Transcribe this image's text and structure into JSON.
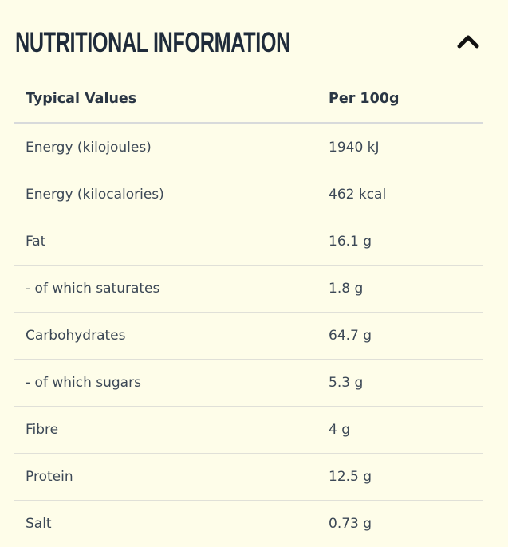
{
  "section": {
    "title": "NUTRITIONAL INFORMATION",
    "toggle_icon": "chevron-up-icon"
  },
  "table": {
    "headers": [
      "Typical Values",
      "Per 100g"
    ],
    "rows": [
      {
        "label": "Energy (kilojoules)",
        "value": "1940 kJ"
      },
      {
        "label": "Energy (kilocalories)",
        "value": "462 kcal"
      },
      {
        "label": "Fat",
        "value": "16.1 g"
      },
      {
        "label": "- of which saturates",
        "value": "1.8 g"
      },
      {
        "label": "Carbohydrates",
        "value": "64.7 g"
      },
      {
        "label": "- of which sugars",
        "value": "5.3 g"
      },
      {
        "label": "Fibre",
        "value": "4 g"
      },
      {
        "label": "Protein",
        "value": "12.5 g"
      },
      {
        "label": "Salt",
        "value": "0.73 g"
      }
    ]
  },
  "colors": {
    "background": "#fefde9",
    "title": "#1f2b3a",
    "text": "#3c4856",
    "divider": "#e0e0d8"
  }
}
